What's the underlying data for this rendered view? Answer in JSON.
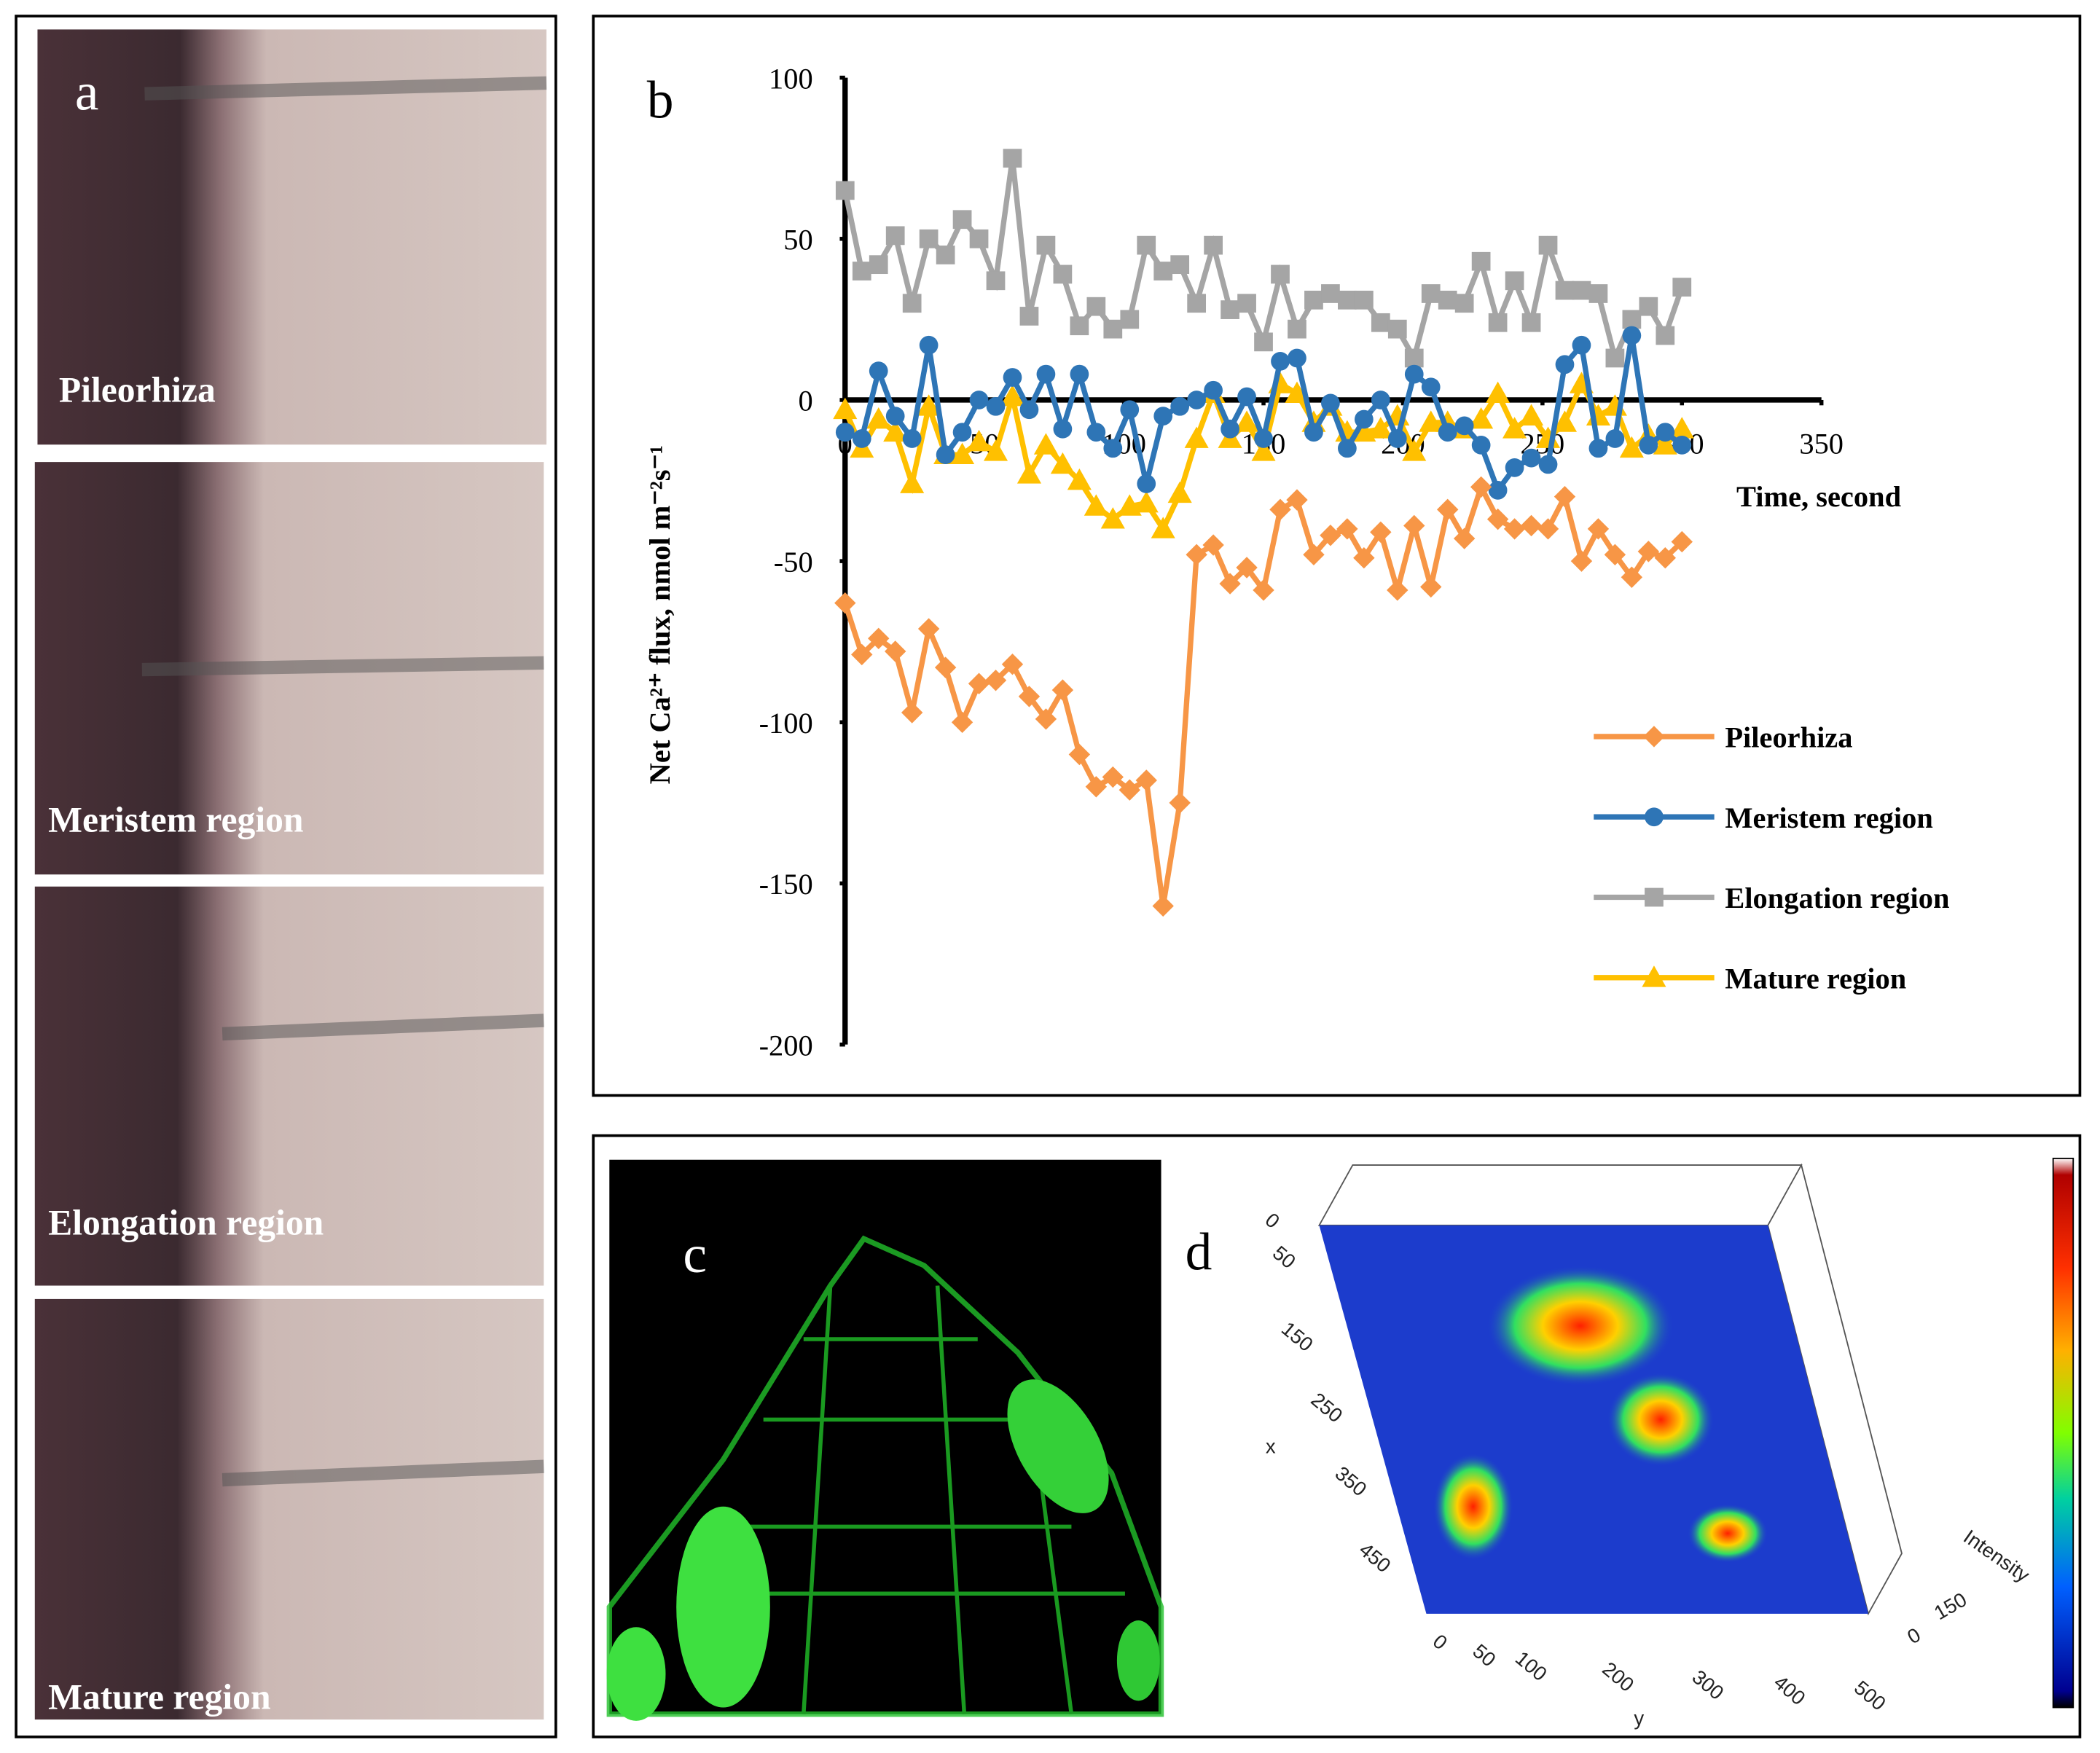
{
  "panels": {
    "a": {
      "letter": "a",
      "images": [
        "Pileorhiza",
        "Meristem region",
        "Elongation region",
        "Mature region"
      ]
    },
    "c": {
      "letter": "c"
    },
    "d": {
      "letter": "d",
      "x_label": "x",
      "y_label": "y",
      "z_label": "Intensity",
      "x_ticks": [
        0,
        50,
        150,
        250,
        350,
        450
      ],
      "y_ticks": [
        0,
        50,
        100,
        200,
        300,
        400,
        500
      ],
      "z_ticks": [
        0,
        150
      ]
    }
  },
  "chart_data": {
    "type": "line",
    "panel_label": "b",
    "x_label": "Time, second",
    "y_label": "Net Ca²⁺ flux, nmol m⁻²s⁻¹",
    "x": [
      0,
      6,
      12,
      18,
      24,
      30,
      36,
      42,
      48,
      54,
      60,
      66,
      72,
      78,
      84,
      90,
      96,
      102,
      108,
      114,
      120,
      126,
      132,
      138,
      144,
      150,
      156,
      162,
      168,
      174,
      180,
      186,
      192,
      198,
      204,
      210,
      216,
      222,
      228,
      234,
      240,
      246,
      252,
      258,
      264,
      270,
      276,
      282,
      288,
      294,
      300
    ],
    "xlim": [
      0,
      350
    ],
    "xticks": [
      0,
      50,
      100,
      150,
      200,
      250,
      300,
      350
    ],
    "ylim": [
      -200,
      100
    ],
    "yticks": [
      -200,
      -150,
      -100,
      -50,
      0,
      50,
      100
    ],
    "legend": "right",
    "series": [
      {
        "name": "Pileorhiza",
        "color": "#f79646",
        "marker": "diamond",
        "values": [
          -63,
          -79,
          -74,
          -78,
          -97,
          -71,
          -83,
          -100,
          -88,
          -87,
          -82,
          -92,
          -99,
          -90,
          -110,
          -120,
          -117,
          -121,
          -118,
          -157,
          -125,
          -48,
          -45,
          -57,
          -52,
          -59,
          -34,
          -31,
          -48,
          -42,
          -40,
          -49,
          -41,
          -59,
          -39,
          -58,
          -34,
          -43,
          -27,
          -37,
          -40,
          -39,
          -40,
          -30,
          -50,
          -40,
          -48,
          -55,
          -47,
          -49,
          -44
        ]
      },
      {
        "name": "Meristem region",
        "color": "#2e75b6",
        "marker": "circle",
        "values": [
          -10,
          -12,
          9,
          -5,
          -12,
          17,
          -17,
          -10,
          0,
          -2,
          7,
          -3,
          8,
          -9,
          8,
          -10,
          -15,
          -3,
          -26,
          -5,
          -2,
          0,
          3,
          -9,
          1,
          -12,
          12,
          13,
          -10,
          -1,
          -15,
          -6,
          0,
          -12,
          8,
          4,
          -10,
          -8,
          -14,
          -28,
          -21,
          -18,
          -20,
          11,
          17,
          -15,
          -12,
          20,
          -14,
          -10,
          -14
        ]
      },
      {
        "name": "Elongation region",
        "color": "#a5a5a5",
        "marker": "square",
        "values": [
          65,
          40,
          42,
          51,
          30,
          50,
          45,
          56,
          50,
          37,
          75,
          26,
          48,
          39,
          23,
          29,
          22,
          25,
          48,
          40,
          42,
          30,
          48,
          28,
          30,
          18,
          39,
          22,
          31,
          33,
          31,
          31,
          24,
          22,
          13,
          33,
          31,
          30,
          43,
          24,
          37,
          24,
          48,
          34,
          34,
          33,
          13,
          25,
          29,
          20,
          35
        ]
      },
      {
        "name": "Mature region",
        "color": "#ffc000",
        "marker": "triangle",
        "values": [
          -3,
          -15,
          -6,
          -10,
          -26,
          -2,
          -17,
          -17,
          -13,
          -16,
          1,
          -23,
          -14,
          -20,
          -25,
          -33,
          -37,
          -33,
          -32,
          -40,
          -29,
          -12,
          2,
          -12,
          -7,
          -16,
          5,
          2,
          -7,
          -2,
          -10,
          -10,
          -9,
          -5,
          -16,
          -7,
          -7,
          -9,
          -6,
          2,
          -9,
          -5,
          -12,
          -7,
          5,
          -5,
          -2,
          -15,
          -11,
          -14,
          -9
        ]
      }
    ]
  }
}
